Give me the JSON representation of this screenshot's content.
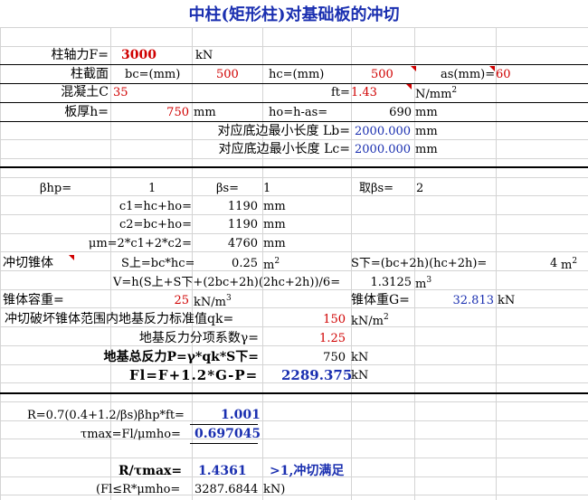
{
  "title": "中柱(矩形柱)对基础板的冲切",
  "inputs": {
    "axial_label": "柱轴力F=",
    "axial_value": "3000",
    "axial_unit": "kN",
    "section_label": "柱截面",
    "bc_label": "bc=(mm)",
    "bc_value": "500",
    "hc_label": "hc=(mm)",
    "hc_value": "500",
    "as_label": "as(mm)=",
    "as_value": "60",
    "concrete_label": "混凝土C",
    "concrete_value": "35",
    "ft_label": "ft=",
    "ft_value": "1.43",
    "ft_unit": "N/mm",
    "thick_label": "板厚h=",
    "thick_value": "750",
    "thick_unit": "mm",
    "ho_label": "ho=h-as=",
    "ho_value": "690",
    "ho_unit": "mm",
    "lb_label": "对应底边最小长度 Lb=",
    "lb_value": "2000.000",
    "lb_unit": "mm",
    "lc_label": "对应底边最小长度 Lc=",
    "lc_value": "2000.000",
    "lc_unit": "mm"
  },
  "calc": {
    "bhp_label": "βhp=",
    "bhp_value": "1",
    "bs_label": "βs=",
    "bs_value": "1",
    "bs_take_label": "取βs=",
    "bs_take_value": "2",
    "c1_label": "c1=hc+ho=",
    "c1_value": "1190",
    "c1_unit": "mm",
    "c2_label": "c2=bc+ho=",
    "c2_value": "1190",
    "c2_unit": "mm",
    "um_label": "μm=2*c1+2*c2=",
    "um_value": "4760",
    "um_unit": "mm",
    "cone_label": "冲切锥体",
    "s_top_label": "S上=bc*hc=",
    "s_top_value": "0.25",
    "s_top_unit": "m",
    "s_bot_label": "S下=(bc+2h)(hc+2h)=",
    "s_bot_value": "4",
    "s_bot_unit": "m",
    "v_label": "V=h(S上+S下+(2bc+2h)(2hc+2h))/6=",
    "v_value": "1.3125",
    "v_unit": "m",
    "density_label": "锥体容重=",
    "density_value": "25",
    "density_unit": "kN/m",
    "weight_label": "锥体重G=",
    "weight_value": "32.813",
    "weight_unit": "kN",
    "qk_label": "冲切破坏锥体范围内地基反力标准值qk=",
    "qk_value": "150",
    "qk_unit": "kN/m",
    "gamma_label": "地基反力分项系数γ=",
    "gamma_value": "1.25",
    "p_label": "地基总反力P=γ*qk*S下=",
    "p_value": "750",
    "p_unit": "kN",
    "fl_label": "Fl=F+1.2*G-P=",
    "fl_value": "2289.375",
    "fl_unit": "kN"
  },
  "check": {
    "r_label": "R=0.7(0.4+1.2/βs)βhp*ft=",
    "r_value": "1.001",
    "tau_label": "τmax=Fl/μmho=",
    "tau_value": "0.697045",
    "ratio_label": "R/τmax=",
    "ratio_value": "1.4361",
    "ratio_result": ">1,冲切满足",
    "fl_check_label": "(Fl≤R*μmho=",
    "fl_check_value": "3287.6844",
    "fl_check_unit": "kN)"
  },
  "sup2": "2",
  "sup3": "3"
}
